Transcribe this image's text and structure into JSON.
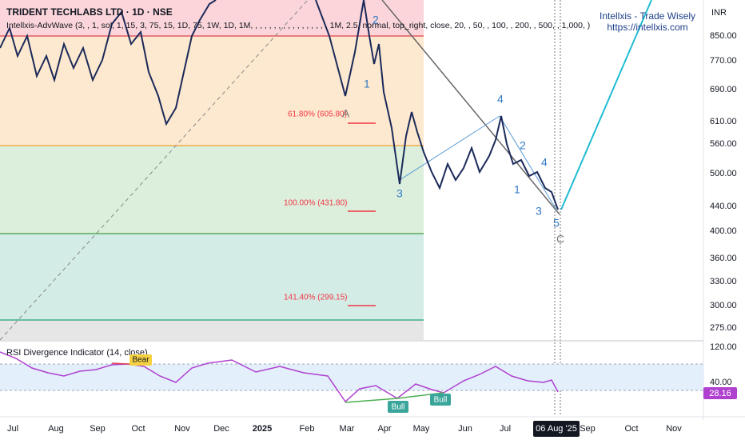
{
  "header": {
    "title": "TRIDENT TECHLABS LTD · 1D · NSE",
    "indicator": "Intellxis-AdvWave (3, , 1, sol, 1, 15, 3, 75, 15, 1D, 75, 1W, 1D, 1M, , , , , , , , , , , , , , , , , 1M, 2.5, normal, top_right, close, 20, , 50, , 100, , 200, , 500, , 1,000, )",
    "currency": "INR"
  },
  "watermark": {
    "line1": "Intellxis - Trade Wisely",
    "line2": "https://intellxis.com"
  },
  "fib_labels": [
    "61.80% (605.80)",
    "100.00% (431.80)",
    "141.40% (299.15)"
  ],
  "wave_labels": [
    "A",
    "2",
    "1",
    "3",
    "4",
    "2",
    "1",
    "4",
    "3",
    "5",
    "C"
  ],
  "price_axis": [
    "850.00",
    "770.00",
    "690.00",
    "610.00",
    "560.00",
    "500.00",
    "440.00",
    "400.00",
    "360.00",
    "330.00",
    "300.00",
    "275.00"
  ],
  "rsi": {
    "title": "RSI Divergence Indicator (14, close)",
    "axis": [
      "120.00",
      "40.00"
    ],
    "current": "28.16",
    "bear": "Bear",
    "bull1": "Bull",
    "bull2": "Bull"
  },
  "time_axis": [
    "Jul",
    "Aug",
    "Sep",
    "Oct",
    "Nov",
    "Dec",
    "2025",
    "Feb",
    "Mar",
    "Apr",
    "May",
    "Jun",
    "Jul",
    "Sep",
    "Oct",
    "Nov"
  ],
  "cursor_date": "06 Aug '25"
}
